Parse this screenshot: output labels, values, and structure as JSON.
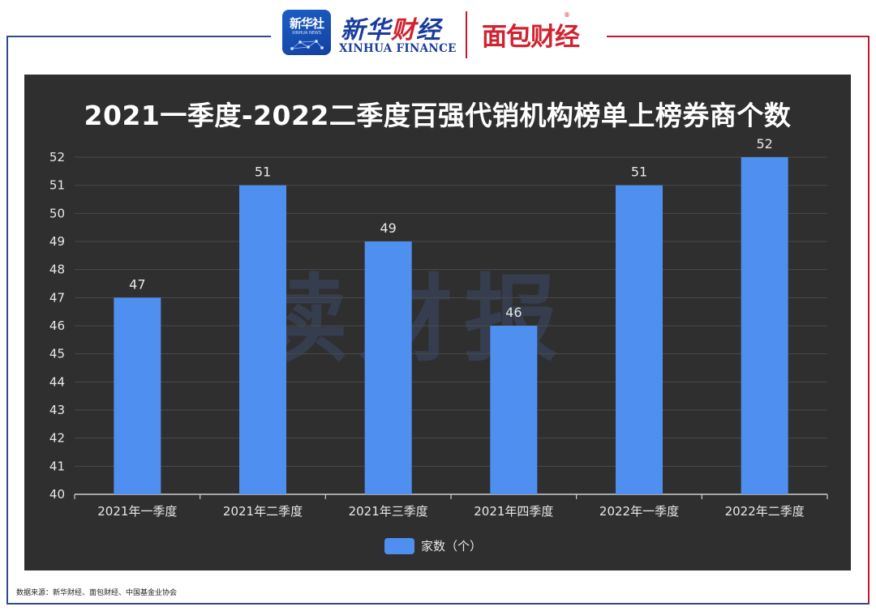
{
  "header": {
    "xinhua_badge": "新华社",
    "xinhua_badge_sub": "XINHUA NEWS",
    "xinhua_finance_cn": "新华财经",
    "xinhua_finance_en": "XINHUA FINANCE",
    "mianbao_logo": "面包财经",
    "registered_mark": "®"
  },
  "watermark": "读财报",
  "colors": {
    "bar": "#4f8ff0",
    "panel_bg": "#2f2f30",
    "grid": "#4a4a4a",
    "text": "#e8e8e8",
    "frame_blue": "#2f4a8a",
    "frame_red": "#c4182d"
  },
  "chart_data": {
    "type": "bar",
    "title": "2021一季度-2022二季度百强代销机构榜单上榜券商个数",
    "categories": [
      "2021年一季度",
      "2021年二季度",
      "2021年三季度",
      "2021年四季度",
      "2022年一季度",
      "2022年二季度"
    ],
    "series": [
      {
        "name": "家数（个）",
        "values": [
          47,
          51,
          49,
          46,
          51,
          52
        ]
      }
    ],
    "ylim": [
      40,
      52
    ],
    "yticks": [
      40,
      41,
      42,
      43,
      44,
      45,
      46,
      47,
      48,
      49,
      50,
      51,
      52
    ],
    "grid": true,
    "legend_position": "bottom-center",
    "data_labels": true
  },
  "source_note": "数据来源：新华财经、面包财经、中国基金业协会"
}
